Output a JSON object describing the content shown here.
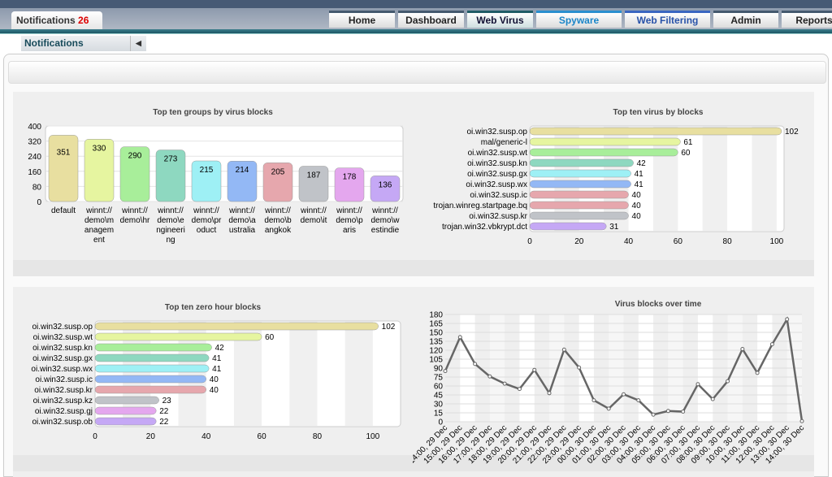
{
  "header": {
    "notifications_label": "Notifications",
    "notifications_count": "26"
  },
  "tabs": [
    {
      "label": "Home"
    },
    {
      "label": "Dashboard"
    },
    {
      "label": "Web Virus"
    },
    {
      "label": "Spyware"
    },
    {
      "label": "Web Filtering"
    },
    {
      "label": "Admin"
    },
    {
      "label": "Reports"
    }
  ],
  "active_tab": "Web Virus",
  "subtab": {
    "label": "Notifications",
    "collapse_icon": "chevron-left-icon"
  },
  "chart_data": [
    {
      "type": "bar",
      "title": "Top ten groups by virus blocks",
      "categories": [
        "default",
        "winnt://demo\\management",
        "winnt://demo\\hr",
        "winnt://demo\\engineering",
        "winnt://demo\\product",
        "winnt://demo\\australia",
        "winnt://demo\\bangkok",
        "winnt://demo\\it",
        "winnt://demo\\paris",
        "winnt://demo\\westindie"
      ],
      "category_lines": [
        [
          "default"
        ],
        [
          "winnt://",
          "demo\\m",
          "anagem",
          "ent"
        ],
        [
          "winnt://",
          "demo\\hr"
        ],
        [
          "winnt://",
          "demo\\e",
          "ngineeri",
          "ng"
        ],
        [
          "winnt://",
          "demo\\pr",
          "oduct"
        ],
        [
          "winnt://",
          "demo\\a",
          "ustralia"
        ],
        [
          "winnt://",
          "demo\\b",
          "angkok"
        ],
        [
          "winnt://",
          "demo\\it"
        ],
        [
          "winnt://",
          "demo\\p",
          "aris"
        ],
        [
          "winnt://",
          "demo\\w",
          "estindie"
        ]
      ],
      "values": [
        351,
        330,
        290,
        273,
        215,
        214,
        205,
        187,
        178,
        136
      ],
      "ylim": [
        0,
        400
      ],
      "yticks": [
        0,
        80,
        160,
        240,
        320,
        400
      ],
      "colors": [
        "#e8dfa0",
        "#e6f5a0",
        "#a8ee9a",
        "#8ed8c0",
        "#9ef0f5",
        "#93b8f5",
        "#e6a7ad",
        "#c0c3c8",
        "#e4a7ee",
        "#c5a8f5"
      ]
    },
    {
      "type": "hbar",
      "title": "Top ten virus by blocks",
      "categories": [
        "oi.win32.susp.op",
        "mal/generic-l",
        "oi.win32.susp.wt",
        "oi.win32.susp.kn",
        "oi.win32.susp.gx",
        "oi.win32.susp.wx",
        "oi.win32.susp.ic",
        "trojan.winreg.startpage.bq",
        "oi.win32.susp.kr",
        "trojan.win32.vbkrypt.dct"
      ],
      "values": [
        102,
        61,
        60,
        42,
        41,
        41,
        40,
        40,
        40,
        31
      ],
      "xlim": [
        0,
        103
      ],
      "xticks": [
        0,
        20,
        40,
        60,
        80,
        100
      ],
      "colors": [
        "#e8dfa0",
        "#e6f5a0",
        "#a8ee9a",
        "#8ed8c0",
        "#9ef0f5",
        "#93b8f5",
        "#e6a7ad",
        "#e6a7ad",
        "#c0c3c8",
        "#c5a8f5"
      ]
    },
    {
      "type": "hbar",
      "title": "Top ten zero hour blocks",
      "categories": [
        "oi.win32.susp.op",
        "oi.win32.susp.wt",
        "oi.win32.susp.kn",
        "oi.win32.susp.gx",
        "oi.win32.susp.wx",
        "oi.win32.susp.ic",
        "oi.win32.susp.kr",
        "oi.win32.susp.kz",
        "oi.win32.susp.gj",
        "oi.win32.susp.ob"
      ],
      "values": [
        102,
        60,
        42,
        41,
        41,
        40,
        40,
        23,
        22,
        22
      ],
      "xlim": [
        0,
        110
      ],
      "xticks": [
        0,
        20,
        40,
        60,
        80,
        100
      ],
      "colors": [
        "#e8dfa0",
        "#e6f5a0",
        "#a8ee9a",
        "#8ed8c0",
        "#9ef0f5",
        "#93b8f5",
        "#e6a7ad",
        "#c0c3c8",
        "#e4a7ee",
        "#c5a8f5"
      ]
    },
    {
      "type": "line",
      "title": "Virus blocks over time",
      "categories": [
        "14:00, 29 Dec",
        "15:00, 29 Dec",
        "16:00, 29 Dec",
        "17:00, 29 Dec",
        "18:00, 29 Dec",
        "19:00, 29 Dec",
        "20:00, 29 Dec",
        "21:00, 29 Dec",
        "22:00, 29 Dec",
        "23:00, 29 Dec",
        "00:00, 30 Dec",
        "01:00, 30 Dec",
        "02:00, 30 Dec",
        "03:00, 30 Dec",
        "04:00, 30 Dec",
        "05:00, 30 Dec",
        "06:00, 30 Dec",
        "07:00, 30 Dec",
        "08:00, 30 Dec",
        "09:00, 30 Dec",
        "10:00, 30 Dec",
        "11:00, 30 Dec",
        "12:00, 30 Dec",
        "13:00, 30 Dec",
        "14:00, 30 Dec"
      ],
      "values": [
        85,
        142,
        97,
        76,
        64,
        55,
        87,
        48,
        121,
        91,
        36,
        22,
        46,
        36,
        12,
        18,
        17,
        63,
        38,
        68,
        122,
        82,
        130,
        172,
        1
      ],
      "ylim": [
        0,
        180
      ],
      "yticks": [
        0,
        15,
        30,
        45,
        60,
        75,
        90,
        105,
        120,
        135,
        150,
        165,
        180
      ]
    }
  ]
}
